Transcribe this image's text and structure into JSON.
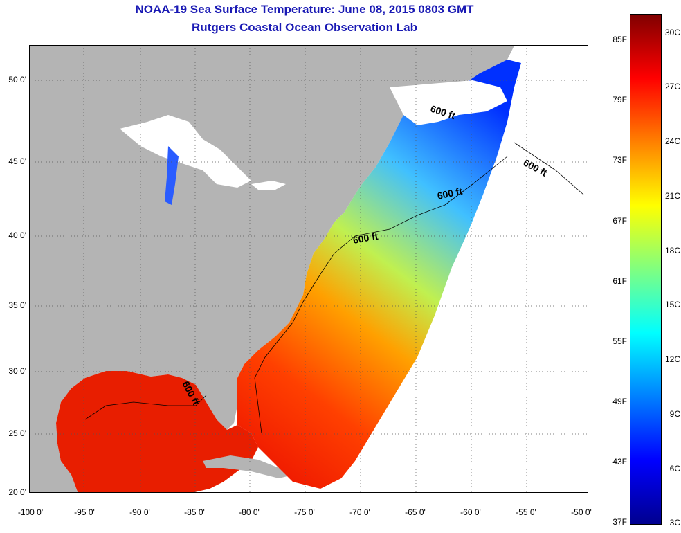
{
  "header": {
    "title": "NOAA-19 Sea Surface Temperature:  June 08, 2015 0803 GMT",
    "subtitle": "Rutgers Coastal Ocean Observation Lab",
    "title_color": "#1a1ab4"
  },
  "map": {
    "lat_labels": [
      "50 0'",
      "45 0'",
      "40 0'",
      "35 0'",
      "30 0'",
      "25 0'",
      "20 0'"
    ],
    "lon_labels": [
      "-100 0'",
      "-95 0'",
      "-90 0'",
      "-85 0'",
      "-80 0'",
      "-75 0'",
      "-70 0'",
      "-65 0'",
      "-60 0'",
      "-55 0'",
      "-50 0'"
    ],
    "contour_labels": [
      "600 ft",
      "600 ft",
      "600 ft",
      "600 ft",
      "600 ft"
    ],
    "land_color": "#b4b4b4",
    "ice_cloud_color": "#ffffff"
  },
  "colorbar": {
    "f_labels": [
      "85F",
      "79F",
      "73F",
      "67F",
      "61F",
      "55F",
      "49F",
      "43F",
      "37F"
    ],
    "c_labels": [
      "30C",
      "27C",
      "24C",
      "21C",
      "18C",
      "15C",
      "12C",
      "9C",
      "6C",
      "3C"
    ],
    "colors": [
      "#00008f",
      "#0000ff",
      "#0080ff",
      "#00ffff",
      "#80ff80",
      "#ffff00",
      "#ff8000",
      "#ff0000",
      "#800000"
    ]
  }
}
